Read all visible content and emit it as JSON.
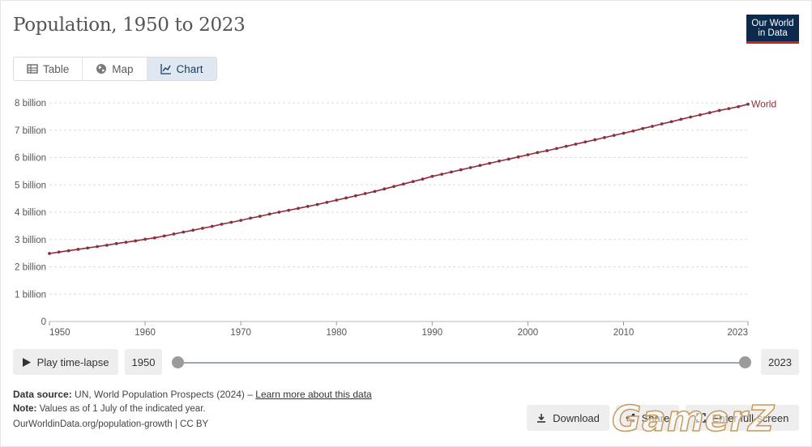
{
  "title": "Population, 1950 to 2023",
  "logo": {
    "line1": "Our World",
    "line2": "in Data"
  },
  "tabs": [
    {
      "label": "Table",
      "icon": "table-icon"
    },
    {
      "label": "Map",
      "icon": "globe-icon"
    },
    {
      "label": "Chart",
      "icon": "line-chart-icon",
      "active": true
    }
  ],
  "chart_data": {
    "type": "line",
    "series": [
      {
        "name": "World",
        "color": "#8c2f39",
        "x": [
          1950,
          1951,
          1952,
          1953,
          1954,
          1955,
          1956,
          1957,
          1958,
          1959,
          1960,
          1961,
          1962,
          1963,
          1964,
          1965,
          1966,
          1967,
          1968,
          1969,
          1970,
          1971,
          1972,
          1973,
          1974,
          1975,
          1976,
          1977,
          1978,
          1979,
          1980,
          1981,
          1982,
          1983,
          1984,
          1985,
          1986,
          1987,
          1988,
          1989,
          1990,
          1991,
          1992,
          1993,
          1994,
          1995,
          1996,
          1997,
          1998,
          1999,
          2000,
          2001,
          2002,
          2003,
          2004,
          2005,
          2006,
          2007,
          2008,
          2009,
          2010,
          2011,
          2012,
          2013,
          2014,
          2015,
          2016,
          2017,
          2018,
          2019,
          2020,
          2021,
          2022,
          2023
        ],
        "values": [
          2.49,
          2.54,
          2.59,
          2.64,
          2.69,
          2.74,
          2.79,
          2.85,
          2.9,
          2.95,
          3.01,
          3.06,
          3.13,
          3.2,
          3.27,
          3.34,
          3.41,
          3.48,
          3.56,
          3.63,
          3.7,
          3.78,
          3.85,
          3.93,
          4.0,
          4.07,
          4.14,
          4.21,
          4.28,
          4.36,
          4.44,
          4.52,
          4.6,
          4.68,
          4.76,
          4.85,
          4.94,
          5.03,
          5.12,
          5.21,
          5.31,
          5.39,
          5.47,
          5.55,
          5.63,
          5.71,
          5.79,
          5.87,
          5.94,
          6.02,
          6.1,
          6.18,
          6.25,
          6.33,
          6.41,
          6.49,
          6.57,
          6.65,
          6.73,
          6.81,
          6.89,
          6.97,
          7.06,
          7.14,
          7.23,
          7.31,
          7.4,
          7.48,
          7.56,
          7.64,
          7.72,
          7.79,
          7.86,
          7.95
        ]
      }
    ],
    "y_ticks": [
      {
        "value": 0,
        "label": "0"
      },
      {
        "value": 1,
        "label": "1 billion"
      },
      {
        "value": 2,
        "label": "2 billion"
      },
      {
        "value": 3,
        "label": "3 billion"
      },
      {
        "value": 4,
        "label": "4 billion"
      },
      {
        "value": 5,
        "label": "5 billion"
      },
      {
        "value": 6,
        "label": "6 billion"
      },
      {
        "value": 7,
        "label": "7 billion"
      },
      {
        "value": 8,
        "label": "8 billion"
      }
    ],
    "x_ticks": [
      1950,
      1960,
      1970,
      1980,
      1990,
      2000,
      2010,
      2023
    ],
    "xlim": [
      1950,
      2023
    ],
    "ylim": [
      0,
      8
    ],
    "grid": "horizontal dashed"
  },
  "timeline": {
    "play_label": "Play time-lapse",
    "start": "1950",
    "end": "2023"
  },
  "footer": {
    "source_label": "Data source:",
    "source_text": "UN, World Population Prospects (2024) –",
    "source_link": "Learn more about this data",
    "note_label": "Note:",
    "note_text": "Values as of 1 July of the indicated year.",
    "url": "OurWorldinData.org/population-growth | CC BY"
  },
  "actions": {
    "download": "Download",
    "share": "Share",
    "fullscreen": "Enter full-screen"
  },
  "watermark": "GamerZ"
}
